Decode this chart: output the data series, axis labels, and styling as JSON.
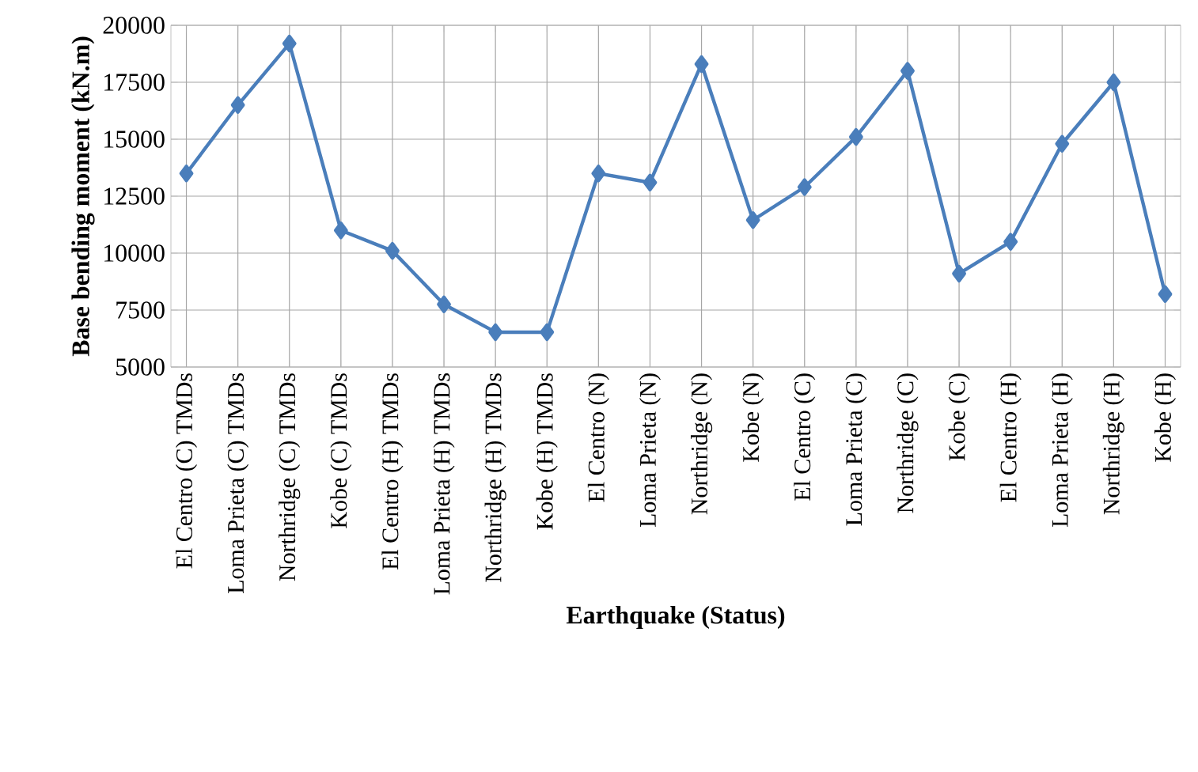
{
  "chart_data": {
    "type": "line",
    "xlabel": "Earthquake (Status)",
    "ylabel": "Base bending moment (kN.m)",
    "categories": [
      "El Centro (C) TMDs",
      "Loma Prieta (C) TMDs",
      "Northridge (C) TMDs",
      "Kobe (C) TMDs",
      "El Centro (H) TMDs",
      "Loma Prieta (H) TMDs",
      "Northridge (H) TMDs",
      "Kobe (H) TMDs",
      "El Centro (N)",
      "Loma Prieta (N)",
      "Northridge (N)",
      "Kobe (N)",
      "El Centro (C)",
      "Loma Prieta (C)",
      "Northridge (C)",
      "Kobe (C)",
      "El Centro (H)",
      "Loma Prieta (H)",
      "Northridge (H)",
      "Kobe (H)"
    ],
    "series": [
      {
        "color": "#4a7ebb",
        "values": [
          13500,
          16500,
          19200,
          11000,
          10100,
          7750,
          6530,
          6530,
          13500,
          13100,
          18300,
          11450,
          12900,
          15100,
          18000,
          9100,
          10500,
          14800,
          17500,
          8200
        ]
      }
    ],
    "ylim": [
      5000,
      20000
    ],
    "yticks": [
      5000,
      7500,
      10000,
      12500,
      15000,
      17500,
      20000
    ],
    "grid": true,
    "marker": "diamond",
    "line_style": "solid"
  }
}
